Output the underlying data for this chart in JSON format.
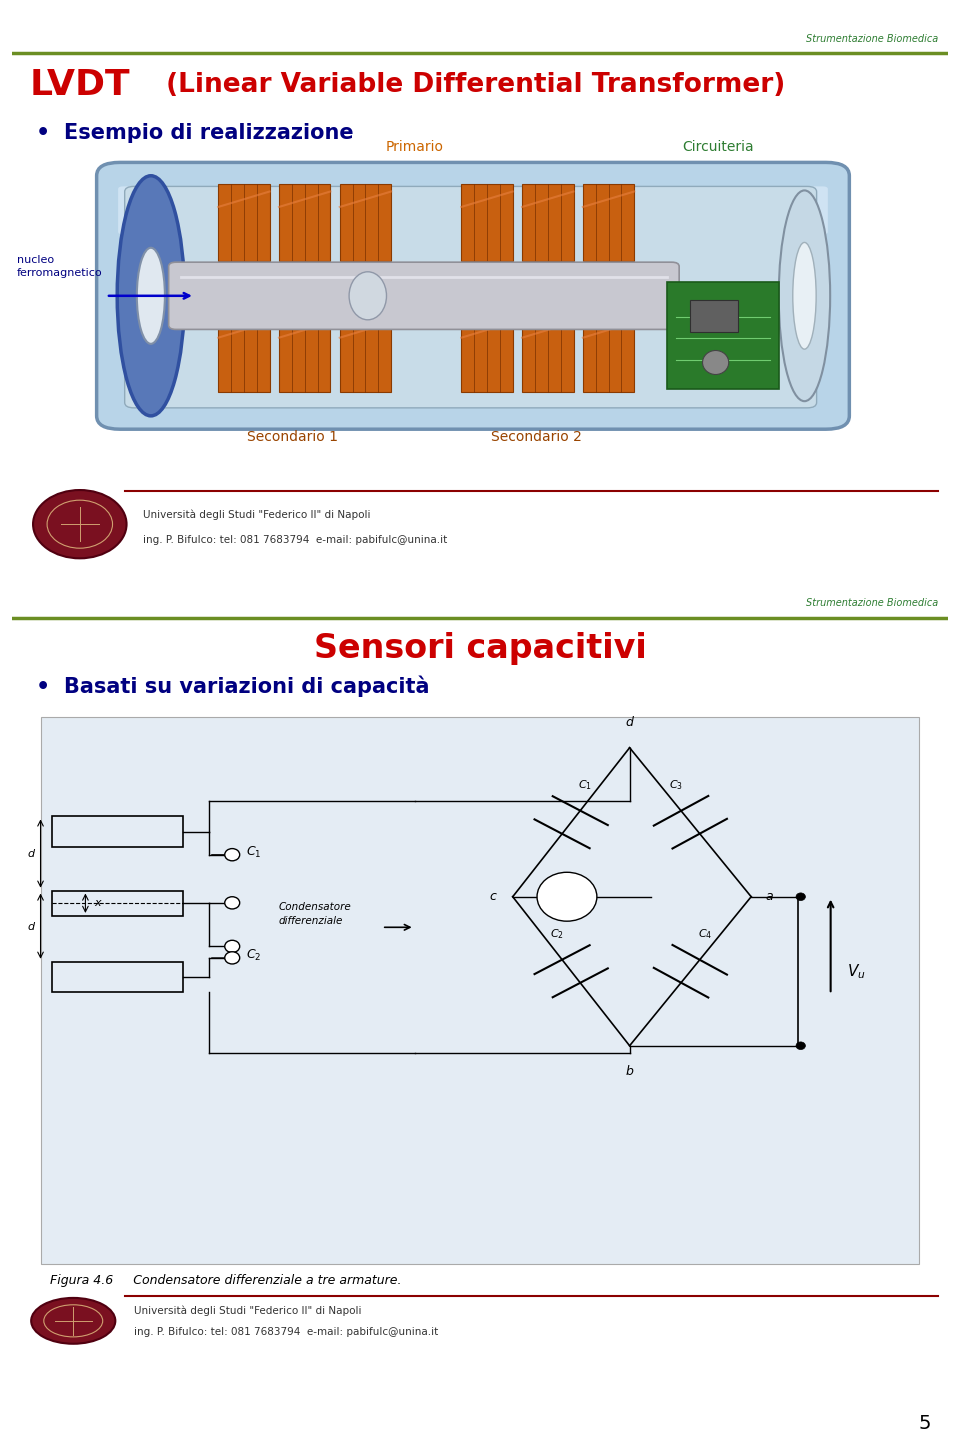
{
  "slide1": {
    "bg_color": "#ddeef8",
    "border_color": "#555555",
    "header_line_color": "#6b8e23",
    "strumentazione_text": "Strumentazione Biomedica",
    "strumentazione_color": "#2e7d32",
    "title_lvdt": "LVDT",
    "title_lvdt_color": "#cc0000",
    "title_rest": " (Linear Variable Differential Transformer)",
    "title_rest_color": "#cc0000",
    "bullet_text": "Esempio di realizzazione",
    "bullet_color": "#000080",
    "primario_label": "Primario",
    "primario_color": "#cc6600",
    "circuiteria_label": "Circuiteria",
    "circuiteria_color": "#2e7d32",
    "nucleo_label": "nucleo\nferromagnetico",
    "nucleo_color": "#000080",
    "secondario1_label": "Secondario 1",
    "secondario1_color": "#994400",
    "secondario2_label": "Secondario 2",
    "secondario2_color": "#994400",
    "footer_line_color": "#8b0000",
    "footer_text1": "Università degli Studi \"Federico II\" di Napoli",
    "footer_text2": "ing. P. Bifulco: tel: 081 7683794  e-mail: pabifulc@unina.it",
    "footer_color": "#333333"
  },
  "slide2": {
    "bg_color": "#ddeef8",
    "border_color": "#555555",
    "header_line_color": "#6b8e23",
    "strumentazione_text": "Strumentazione Biomedica",
    "strumentazione_color": "#2e7d32",
    "title": "Sensori capacitivi",
    "title_color": "#cc0000",
    "bullet_text": "Basati su variazioni di capacità",
    "bullet_color": "#000080",
    "figure_caption": "Figura 4.6     Condensatore differenziale a tre armature.",
    "footer_line_color": "#8b0000",
    "footer_text1": "Università degli Studi \"Federico II\" di Napoli",
    "footer_text2": "ing. P. Bifulco: tel: 081 7683794  e-mail: pabifulc@unina.it",
    "footer_color": "#333333"
  },
  "page_number": "5",
  "outer_bg": "#ffffff",
  "gap_color": "#ffffff"
}
